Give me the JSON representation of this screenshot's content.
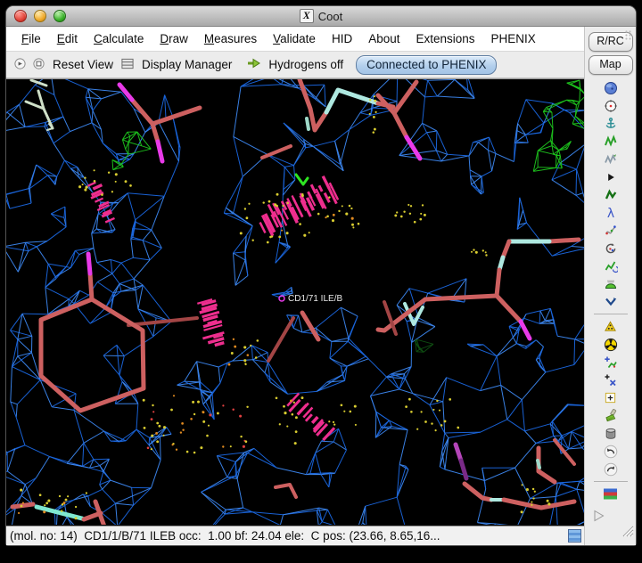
{
  "window": {
    "title": "Coot"
  },
  "menubar": {
    "items": [
      {
        "label": "File",
        "accel": true
      },
      {
        "label": "Edit",
        "accel": true
      },
      {
        "label": "Calculate",
        "accel": true
      },
      {
        "label": "Draw",
        "accel": true
      },
      {
        "label": "Measures",
        "accel": true
      },
      {
        "label": "Validate",
        "accel": true
      },
      {
        "label": "HID",
        "accel": false
      },
      {
        "label": "About",
        "accel": false
      },
      {
        "label": "Extensions",
        "accel": false
      },
      {
        "label": "PHENIX",
        "accel": false
      }
    ]
  },
  "toolbar": {
    "reset_view_label": "Reset View",
    "display_manager_label": "Display Manager",
    "hydrogens_label": "Hydrogens off",
    "phenix_status_label": "Connected to PHENIX"
  },
  "side_panel": {
    "buttons": [
      {
        "label": "R/RC"
      },
      {
        "label": "Map"
      }
    ],
    "icons": [
      "globe-icon",
      "recenter-target-icon",
      "anchor-icon",
      "refine-zigzag-icon",
      "regularize-zigzag-icon",
      "fixed-atoms-icon",
      "rigid-body-icon",
      "rotate-translate-icon",
      "auto-fit-rotamer-icon",
      "rotamer-loop-icon",
      "edit-chi-angles-icon",
      "flip-sidechain-icon",
      "flip-peptide-icon",
      "jiggle-fit-icon",
      "radiation-icon",
      "add-terminal-residue-icon",
      "add-alt-conf-icon",
      "place-atom-icon",
      "brush-icon",
      "delete-bucket-icon",
      "undo-icon",
      "redo-icon",
      "flag-icon",
      "play-icon"
    ]
  },
  "canvas": {
    "atom_label": "CD1/71 ILE/B",
    "palette": {
      "background": "#000000",
      "mesh_blue": "#1b67df",
      "mesh_blue_light": "#3d87f0",
      "mesh_green": "#1ec41e",
      "mesh_green_dark": "#0f4f12",
      "coral": "#cd6060",
      "dark_red": "#a34545",
      "magenta": "#e93ae9",
      "fan_pink": "#ee2e8e",
      "pale_cyan": "#aee8e0",
      "aqua": "#7fe8d0",
      "teal": "#9fd8c8",
      "purple": "#b445b8",
      "purple_dark": "#7a2a88",
      "pale_green": "#cfe0c8",
      "bright_green": "#2ee622",
      "dot_yellow": "#d8cc30",
      "dot_orange": "#e08a20",
      "dot_red": "#e04040",
      "label": "#e8e8e8"
    }
  },
  "statusbar": {
    "text": "(mol. no: 14)  CD1/1/B/71 ILEB occ:  1.00 bf: 24.04 ele:  C pos: (23.66, 8.65,16..."
  }
}
